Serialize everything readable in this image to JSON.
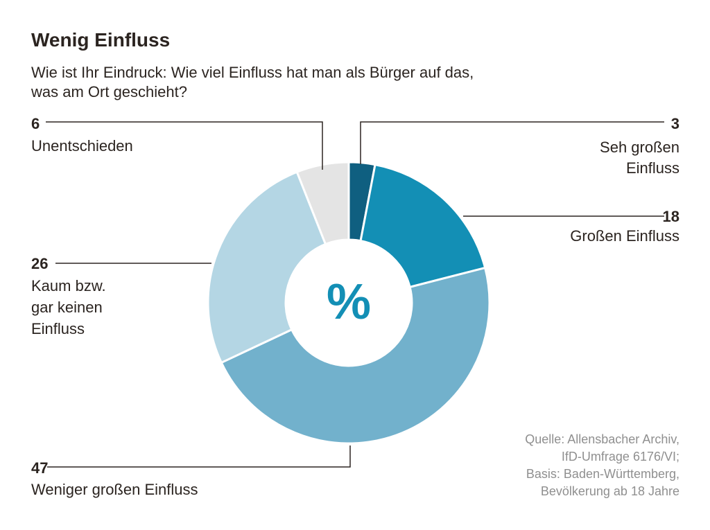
{
  "chart_data": {
    "type": "pie",
    "title": "Wenig Einfluss",
    "subtitle_lines": [
      "Wie ist Ihr Eindruck: Wie viel Einfluss hat man als Bürger auf das,",
      "was am Ort geschieht?"
    ],
    "center_label": "%",
    "slices": [
      {
        "value": 3,
        "value_label": "3",
        "label_lines": [
          "Seh großen",
          "Einfluss"
        ],
        "color": "#0f5f80"
      },
      {
        "value": 18,
        "value_label": "18",
        "label_lines": [
          "Großen Einfluss"
        ],
        "color": "#138fb5"
      },
      {
        "value": 47,
        "value_label": "47",
        "label_lines": [
          "Weniger großen Einfluss"
        ],
        "color": "#72b1cc"
      },
      {
        "value": 26,
        "value_label": "26",
        "label_lines": [
          "Kaum bzw.",
          "gar keinen",
          "Einfluss"
        ],
        "color": "#b4d6e4"
      },
      {
        "value": 6,
        "value_label": "6",
        "label_lines": [
          "Unentschieden"
        ],
        "color": "#e4e4e4"
      }
    ],
    "source_lines": [
      "Quelle: Allensbacher Archiv,",
      "IfD-Umfrage 6176/VI;",
      "Basis: Baden-Württemberg,",
      "Bevölkerung ab 18 Jahre"
    ],
    "center_color": "#138fb5"
  }
}
